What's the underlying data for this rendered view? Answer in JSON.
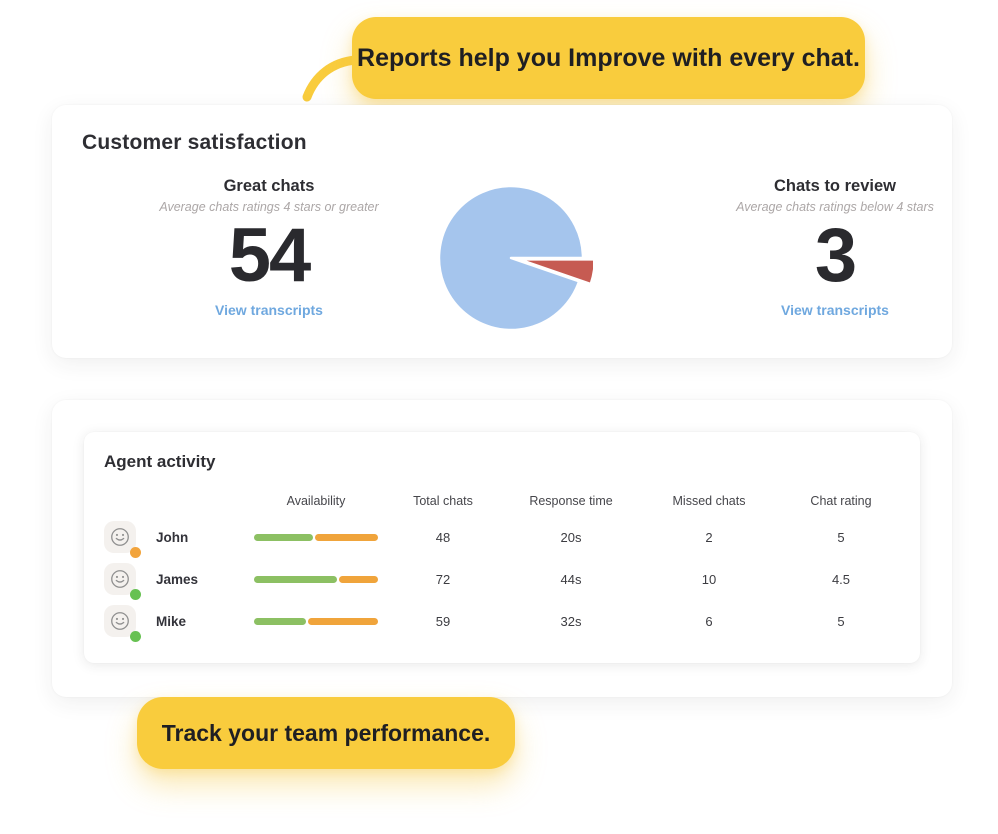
{
  "callouts": {
    "top": "Reports help you Improve with every chat.",
    "bottom": "Track your team performance."
  },
  "colors": {
    "bubble": "#F9CC3D",
    "link": "#6FA8DF",
    "pie_blue": "#A5C5ED",
    "pie_red": "#C65B52",
    "bar_green": "#8CC063",
    "bar_orange": "#F0A43B"
  },
  "customer_satisfaction": {
    "title": "Customer satisfaction",
    "great": {
      "title": "Great chats",
      "subtitle": "Average chats ratings 4 stars or greater",
      "value": "54",
      "link": "View transcripts"
    },
    "review": {
      "title": "Chats to review",
      "subtitle": "Average chats ratings below 4 stars",
      "value": "3",
      "link": "View transcripts"
    }
  },
  "chart_data": {
    "type": "pie",
    "title": "Customer satisfaction",
    "labels": [
      "Great chats",
      "Chats to review"
    ],
    "values": [
      54,
      3
    ],
    "colors": [
      "#A5C5ED",
      "#C65B52"
    ],
    "exploded_index": 1,
    "legend": "none"
  },
  "agent_activity": {
    "title": "Agent activity",
    "columns": [
      "Availability",
      "Total chats",
      "Response time",
      "Missed chats",
      "Chat rating"
    ],
    "rows": [
      {
        "name": "John",
        "status_color": "#F2A43C",
        "availability_green_pct": 48,
        "availability_orange_pct": 52,
        "total_chats": "48",
        "response_time": "20s",
        "missed_chats": "2",
        "chat_rating": "5"
      },
      {
        "name": "James",
        "status_color": "#67C152",
        "availability_green_pct": 68,
        "availability_orange_pct": 32,
        "total_chats": "72",
        "response_time": "44s",
        "missed_chats": "10",
        "chat_rating": "4.5"
      },
      {
        "name": "Mike",
        "status_color": "#67C152",
        "availability_green_pct": 43,
        "availability_orange_pct": 57,
        "total_chats": "59",
        "response_time": "32s",
        "missed_chats": "6",
        "chat_rating": "5"
      }
    ]
  }
}
